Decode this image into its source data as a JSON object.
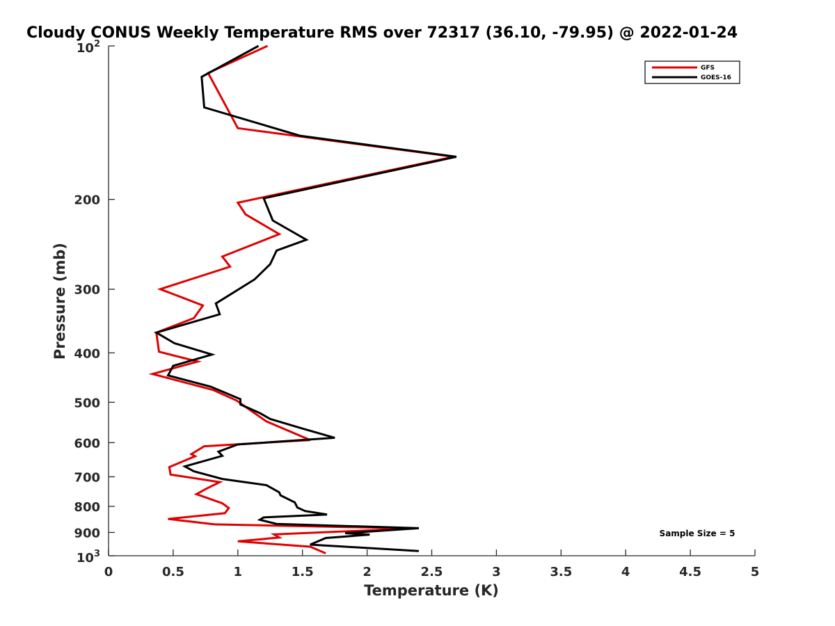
{
  "chart_data": {
    "type": "line",
    "title": "Cloudy CONUS Weekly Temperature RMS over 72317 (36.10, -79.95) @ 2022-01-24",
    "xlabel": "Temperature (K)",
    "ylabel": "Pressure (mb)",
    "xlim": [
      0,
      5
    ],
    "ylim": [
      100,
      1000
    ],
    "y_scale": "log",
    "y_reversed": true,
    "x_ticks": [
      "0",
      "0.5",
      "1",
      "1.5",
      "2",
      "2.5",
      "3",
      "3.5",
      "4",
      "4.5",
      "5"
    ],
    "y_ticks": [
      {
        "value": 100,
        "base": "10",
        "exp": "2"
      },
      {
        "value": 200,
        "label": "200"
      },
      {
        "value": 300,
        "label": "300"
      },
      {
        "value": 400,
        "label": "400"
      },
      {
        "value": 500,
        "label": "500"
      },
      {
        "value": 600,
        "label": "600"
      },
      {
        "value": 700,
        "label": "700"
      },
      {
        "value": 800,
        "label": "800"
      },
      {
        "value": 900,
        "label": "900"
      },
      {
        "value": 1000,
        "base": "10",
        "exp": "3"
      }
    ],
    "grid": false,
    "legend_position": "top-right",
    "annotation": "Sample Size = 5",
    "series": [
      {
        "name": "GFS",
        "color": "#e00000",
        "points": [
          [
            1.23,
            100
          ],
          [
            0.77,
            113
          ],
          [
            1.0,
            145
          ],
          [
            2.67,
            165
          ],
          [
            1.0,
            203
          ],
          [
            1.06,
            214
          ],
          [
            1.32,
            234
          ],
          [
            0.88,
            259
          ],
          [
            0.94,
            271
          ],
          [
            0.4,
            300
          ],
          [
            0.73,
            323
          ],
          [
            0.66,
            342
          ],
          [
            0.37,
            365
          ],
          [
            0.39,
            398
          ],
          [
            0.69,
            416
          ],
          [
            0.34,
            440
          ],
          [
            0.81,
            473
          ],
          [
            0.99,
            496
          ],
          [
            1.22,
            545
          ],
          [
            1.56,
            593
          ],
          [
            0.74,
            610
          ],
          [
            0.64,
            632
          ],
          [
            0.67,
            638
          ],
          [
            0.47,
            670
          ],
          [
            0.48,
            693
          ],
          [
            0.86,
            717
          ],
          [
            0.76,
            738
          ],
          [
            0.68,
            757
          ],
          [
            0.88,
            789
          ],
          [
            0.93,
            806
          ],
          [
            0.9,
            825
          ],
          [
            0.46,
            847
          ],
          [
            0.82,
            868
          ],
          [
            2.37,
            884
          ],
          [
            1.28,
            908
          ],
          [
            1.32,
            921
          ],
          [
            1.0,
            937
          ],
          [
            1.56,
            960
          ],
          [
            1.68,
            989
          ]
        ]
      },
      {
        "name": "GOES-16",
        "color": "#000000",
        "points": [
          [
            1.16,
            100
          ],
          [
            0.72,
            115
          ],
          [
            0.74,
            132
          ],
          [
            1.48,
            150
          ],
          [
            2.69,
            165
          ],
          [
            1.2,
            199
          ],
          [
            1.27,
            220
          ],
          [
            1.53,
            240
          ],
          [
            1.3,
            252
          ],
          [
            1.25,
            268
          ],
          [
            1.13,
            287
          ],
          [
            0.83,
            320
          ],
          [
            0.86,
            336
          ],
          [
            0.37,
            365
          ],
          [
            0.51,
            383
          ],
          [
            0.8,
            403
          ],
          [
            0.5,
            424
          ],
          [
            0.46,
            443
          ],
          [
            0.79,
            466
          ],
          [
            1.02,
            493
          ],
          [
            1.02,
            505
          ],
          [
            1.17,
            525
          ],
          [
            1.25,
            539
          ],
          [
            1.51,
            564
          ],
          [
            1.75,
            587
          ],
          [
            1.0,
            605
          ],
          [
            0.85,
            625
          ],
          [
            0.88,
            637
          ],
          [
            0.59,
            668
          ],
          [
            0.66,
            683
          ],
          [
            0.88,
            707
          ],
          [
            1.22,
            727
          ],
          [
            1.32,
            751
          ],
          [
            1.33,
            761
          ],
          [
            1.44,
            786
          ],
          [
            1.46,
            804
          ],
          [
            1.52,
            817
          ],
          [
            1.69,
            830
          ],
          [
            1.2,
            841
          ],
          [
            1.17,
            850
          ],
          [
            1.3,
            866
          ],
          [
            2.4,
            883
          ],
          [
            1.83,
            903
          ],
          [
            2.02,
            909
          ],
          [
            1.68,
            923
          ],
          [
            1.56,
            951
          ],
          [
            2.4,
            979
          ]
        ]
      }
    ]
  }
}
